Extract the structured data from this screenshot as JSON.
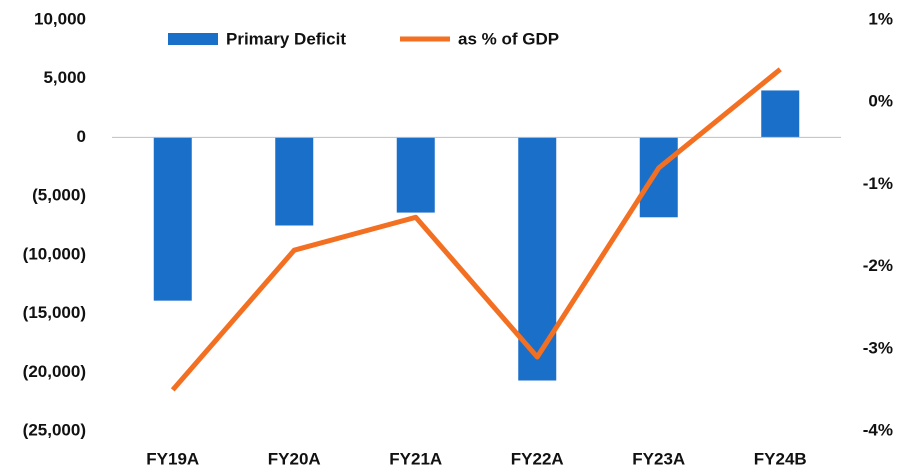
{
  "chart_data": {
    "type": "bar_line",
    "categories": [
      "FY19A",
      "FY20A",
      "FY21A",
      "FY22A",
      "FY23A",
      "FY24B"
    ],
    "series": [
      {
        "name": "Primary Deficit",
        "color": "#1a6fc9",
        "type": "bar",
        "values": [
          -13900,
          -7500,
          -6400,
          -20700,
          -6800,
          4000
        ]
      },
      {
        "name": "as % of GDP",
        "color": "#f36f21",
        "type": "line",
        "axis": "y2",
        "values": [
          -3.5,
          -1.8,
          -1.4,
          -3.1,
          -0.8,
          0.4
        ]
      }
    ],
    "ylim": [
      -25000,
      10000
    ],
    "yticks": [
      {
        "value": -25000,
        "label": "(25,000)"
      },
      {
        "value": -20000,
        "label": "(20,000)"
      },
      {
        "value": -15000,
        "label": "(15,000)"
      },
      {
        "value": -10000,
        "label": "(10,000)"
      },
      {
        "value": -5000,
        "label": "(5,000)"
      },
      0,
      {
        "value": 5000,
        "label": "5,000"
      },
      {
        "value": 10000,
        "label": "10,000"
      }
    ],
    "y2lim": [
      -4,
      1
    ],
    "y2ticks": [
      {
        "value": -4,
        "label": "-4%"
      },
      {
        "value": -3,
        "label": "-3%"
      },
      {
        "value": -2,
        "label": "-2%"
      },
      {
        "value": -1,
        "label": "-1%"
      },
      {
        "value": 0,
        "label": "0%"
      },
      {
        "value": 1,
        "label": "1%"
      }
    ],
    "legend": "top"
  }
}
